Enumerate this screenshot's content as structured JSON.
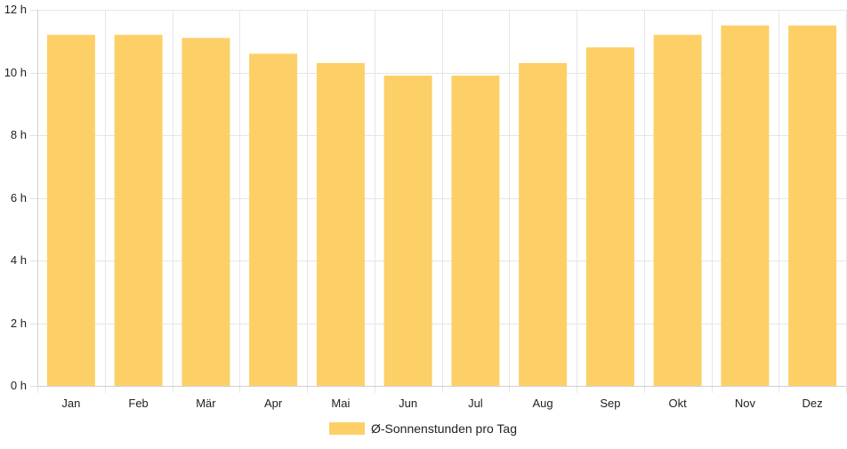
{
  "chart_data": {
    "type": "bar",
    "categories": [
      "Jan",
      "Feb",
      "Mär",
      "Apr",
      "Mai",
      "Jun",
      "Jul",
      "Aug",
      "Sep",
      "Okt",
      "Nov",
      "Dez"
    ],
    "series": [
      {
        "name": "Ø-Sonnenstunden pro Tag",
        "values": [
          11.2,
          11.2,
          11.1,
          10.6,
          10.3,
          9.9,
          9.9,
          10.3,
          10.8,
          11.2,
          11.5,
          11.5
        ],
        "color": "#fdd067"
      }
    ],
    "y_ticks": [
      "0 h",
      "2 h",
      "4 h",
      "6 h",
      "8 h",
      "10 h",
      "12 h"
    ],
    "ylim": [
      0,
      12
    ],
    "grid": true,
    "legend_position": "bottom"
  }
}
